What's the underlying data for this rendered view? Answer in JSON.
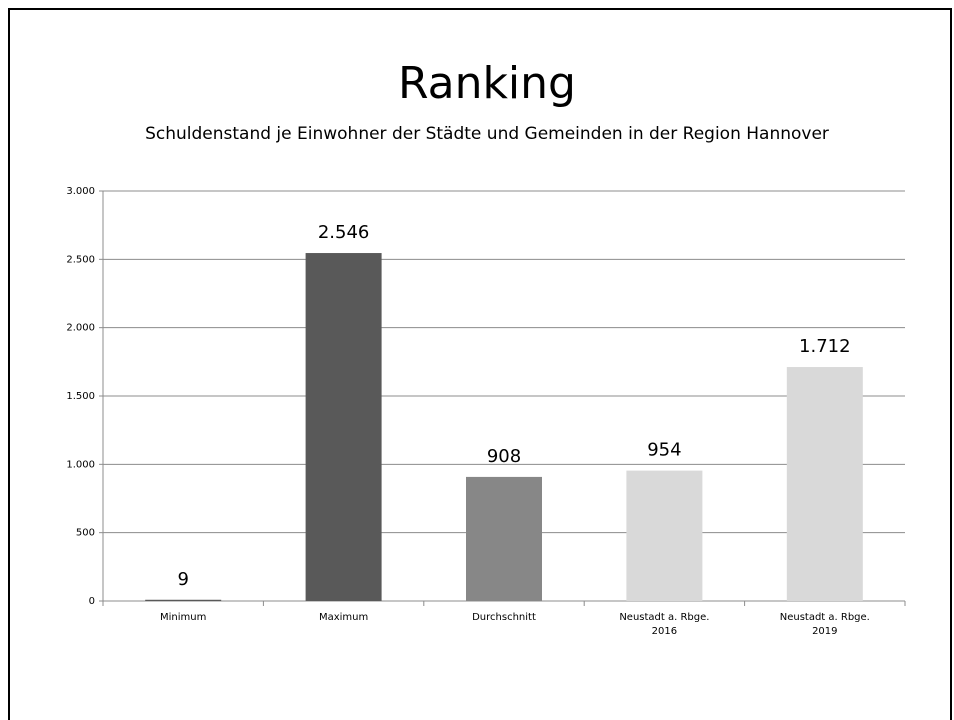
{
  "chart_data": {
    "type": "bar",
    "title": "Ranking",
    "subtitle": "Schuldenstand je Einwohner der Städte und Gemeinden in der Region Hannover",
    "categories": [
      "Minimum",
      "Maximum",
      "Durchschnitt",
      "Neustadt a. Rbge. 2016",
      "Neustadt a. Rbge. 2019"
    ],
    "values": [
      9,
      2546,
      908,
      954,
      1712
    ],
    "value_labels": [
      "9",
      "2.546",
      "908",
      "954",
      "1.712"
    ],
    "colors": [
      "#595959",
      "#595959",
      "#878787",
      "#d9d9d9",
      "#d9d9d9"
    ],
    "ylim": [
      0,
      3000
    ],
    "yticks": [
      0,
      500,
      {
        "value": 1000,
        "label": "1.000"
      },
      {
        "value": 1500,
        "label": "1.500"
      },
      {
        "value": 2000,
        "label": "2.000"
      },
      {
        "value": 2500,
        "label": "2.500"
      },
      {
        "value": 3000,
        "label": "3.000"
      }
    ],
    "grid": true
  }
}
